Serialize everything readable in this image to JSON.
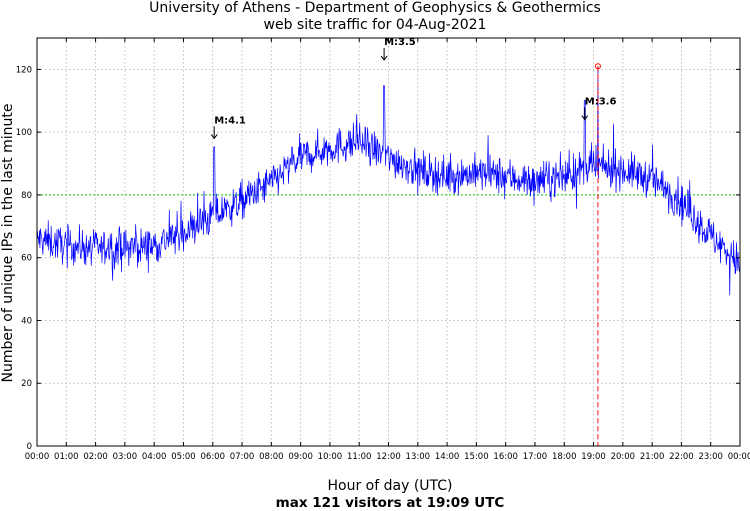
{
  "chart_data": {
    "type": "line",
    "title_line1": "University of Athens - Department of Geophysics & Geothermics",
    "title_line2": "web site traffic for 04-Aug-2021",
    "xlabel": "Hour of day (UTC)",
    "ylabel": "Number of unique IPs in the last minute",
    "footer": "max 121 visitors at 19:09 UTC",
    "xlim": [
      0,
      24
    ],
    "ylim": [
      0,
      130
    ],
    "x_ticks": [
      "00:00",
      "01:00",
      "02:00",
      "03:00",
      "04:00",
      "05:00",
      "06:00",
      "07:00",
      "08:00",
      "09:00",
      "10:00",
      "11:00",
      "12:00",
      "13:00",
      "14:00",
      "15:00",
      "16:00",
      "17:00",
      "18:00",
      "19:00",
      "20:00",
      "21:00",
      "22:00",
      "23:00",
      "00:00"
    ],
    "y_ticks": [
      0,
      20,
      40,
      60,
      80,
      100,
      120
    ],
    "reference_line": {
      "y": 80,
      "color": "#00cc00"
    },
    "max_point": {
      "hour": 19.15,
      "value": 121,
      "color": "#ff0000"
    },
    "annotations": [
      {
        "label": "M:4.1",
        "hour": 6.05,
        "value": 98
      },
      {
        "label": "M:3.5",
        "hour": 11.85,
        "value": 123
      },
      {
        "label": "M:3.6",
        "hour": 18.7,
        "value": 104
      }
    ],
    "series": [
      {
        "name": "unique IPs per minute",
        "color": "#0000ff",
        "hourly_mean": [
          {
            "hour": 0,
            "value": 66
          },
          {
            "hour": 1,
            "value": 64
          },
          {
            "hour": 2,
            "value": 63
          },
          {
            "hour": 3,
            "value": 63
          },
          {
            "hour": 4,
            "value": 64
          },
          {
            "hour": 5,
            "value": 68
          },
          {
            "hour": 6,
            "value": 73
          },
          {
            "hour": 7,
            "value": 78
          },
          {
            "hour": 8,
            "value": 84
          },
          {
            "hour": 9,
            "value": 92
          },
          {
            "hour": 10,
            "value": 95
          },
          {
            "hour": 11,
            "value": 97
          },
          {
            "hour": 12,
            "value": 92
          },
          {
            "hour": 13,
            "value": 88
          },
          {
            "hour": 14,
            "value": 86
          },
          {
            "hour": 15,
            "value": 87
          },
          {
            "hour": 16,
            "value": 86
          },
          {
            "hour": 17,
            "value": 84
          },
          {
            "hour": 18,
            "value": 86
          },
          {
            "hour": 19,
            "value": 89
          },
          {
            "hour": 20,
            "value": 88
          },
          {
            "hour": 21,
            "value": 85
          },
          {
            "hour": 22,
            "value": 78
          },
          {
            "hour": 23,
            "value": 67
          },
          {
            "hour": 24,
            "value": 58
          }
        ],
        "noise_amplitude": 7
      }
    ]
  },
  "colors": {
    "series": "#0000ff",
    "reference": "#00cc00",
    "max_marker": "#ff0000",
    "grid": "#b0b0b0"
  }
}
